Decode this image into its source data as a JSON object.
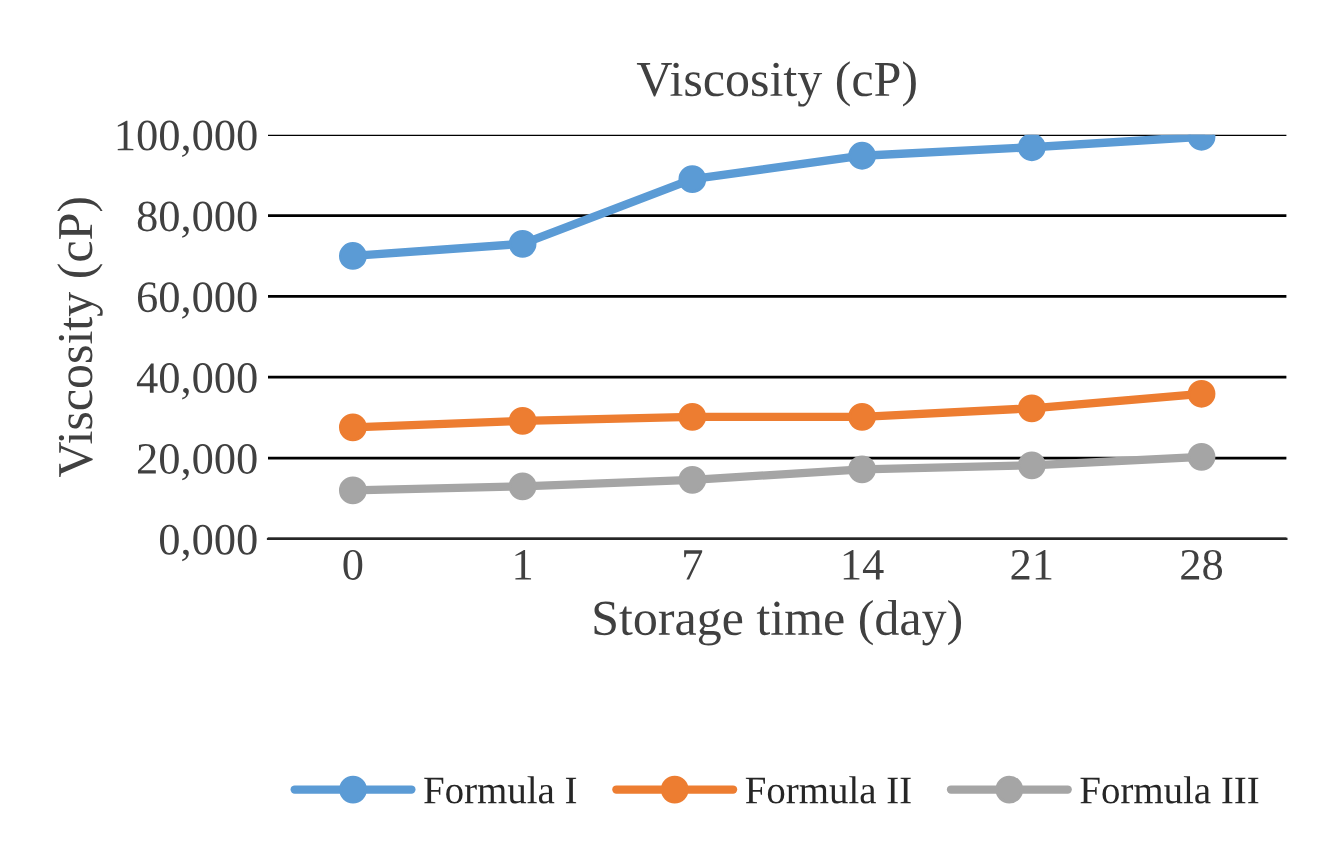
{
  "chart_data": {
    "type": "line",
    "title": "Viscosity (cP)",
    "xlabel": "Storage time (day)",
    "ylabel": "Viscosity (cP)",
    "categories": [
      "0",
      "1",
      "7",
      "14",
      "21",
      "28"
    ],
    "series": [
      {
        "name": "Formula I",
        "color": "#5b9bd5",
        "values": [
          70000,
          73000,
          89000,
          94800,
          96900,
          99500
        ]
      },
      {
        "name": "Formula II",
        "color": "#ed7d31",
        "values": [
          27600,
          29200,
          30200,
          30200,
          32300,
          35900
        ]
      },
      {
        "name": "Formula III",
        "color": "#a5a5a5",
        "values": [
          12000,
          13000,
          14600,
          17200,
          18200,
          20300
        ]
      }
    ],
    "ylim": [
      0,
      100000
    ],
    "yticks": [
      {
        "value": 0,
        "label": "0,000"
      },
      {
        "value": 20000,
        "label": "20,000"
      },
      {
        "value": 40000,
        "label": "40,000"
      },
      {
        "value": 60000,
        "label": "60,000"
      },
      {
        "value": 80000,
        "label": "80,000"
      },
      {
        "value": 100000,
        "label": "100,000"
      }
    ],
    "grid": "y",
    "legend": "bottom",
    "marker": "circle",
    "line_style": "solid"
  }
}
